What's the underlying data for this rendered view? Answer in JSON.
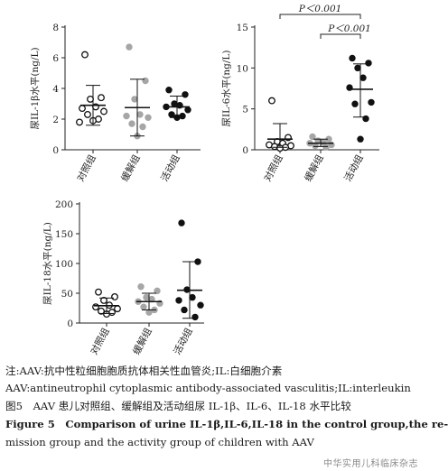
{
  "chart_data": [
    {
      "type": "scatter",
      "ylabel": "尿IL-1β水平(ng/L)",
      "ylim": [
        0,
        8
      ],
      "yticks": [
        0,
        2,
        4,
        6,
        8
      ],
      "categories": [
        "对照组",
        "缓解组",
        "活动组"
      ],
      "groups": [
        {
          "name": "对照组",
          "marker": "open",
          "color": "#111111",
          "values": [
            6.2,
            3.4,
            3.3,
            2.8,
            2.7,
            2.5,
            2.3,
            2.0,
            1.9,
            1.8
          ],
          "mean": 2.9,
          "sd_low": 1.6,
          "sd_high": 4.2
        },
        {
          "name": "缓解组",
          "marker": "filled",
          "color": "#a6a6a6",
          "values": [
            6.7,
            4.5,
            3.3,
            2.3,
            2.2,
            2.1,
            1.7,
            1.5,
            0.9
          ],
          "mean": 2.75,
          "sd_low": 0.9,
          "sd_high": 4.6
        },
        {
          "name": "活动组",
          "marker": "filled",
          "color": "#111111",
          "values": [
            3.9,
            3.6,
            3.0,
            2.9,
            2.8,
            2.6,
            2.3,
            2.2,
            2.1
          ],
          "mean": 2.8,
          "sd_low": 2.1,
          "sd_high": 3.5
        }
      ]
    },
    {
      "type": "scatter",
      "ylabel": "尿IL-6水平(ng/L)",
      "ylim": [
        0,
        15
      ],
      "yticks": [
        0,
        5,
        10,
        15
      ],
      "categories": [
        "对照组",
        "缓解组",
        "活动组"
      ],
      "annotations": [
        "P＜0.001",
        "P＜0.001"
      ],
      "groups": [
        {
          "name": "对照组",
          "marker": "open",
          "color": "#111111",
          "values": [
            6.0,
            1.5,
            1.0,
            0.8,
            0.6,
            0.5,
            0.4,
            0.3,
            0.2
          ],
          "mean": 1.3,
          "sd_low": 0.3,
          "sd_high": 3.2
        },
        {
          "name": "缓解组",
          "marker": "filled",
          "color": "#a6a6a6",
          "values": [
            1.6,
            1.3,
            1.1,
            0.9,
            0.8,
            0.6,
            0.5,
            0.3
          ],
          "mean": 0.8,
          "sd_low": 0.4,
          "sd_high": 1.3
        },
        {
          "name": "活动组",
          "marker": "filled",
          "color": "#111111",
          "values": [
            11.2,
            10.6,
            10.0,
            8.8,
            7.6,
            5.8,
            5.6,
            3.8,
            1.3
          ],
          "mean": 7.4,
          "sd_low": 4.0,
          "sd_high": 10.5
        }
      ]
    },
    {
      "type": "scatter",
      "ylabel": "尿IL-18水平(ng/L)",
      "ylim": [
        0,
        200
      ],
      "yticks": [
        0,
        50,
        100,
        150,
        200
      ],
      "categories": [
        "对照组",
        "缓解组",
        "活动组"
      ],
      "groups": [
        {
          "name": "对照组",
          "marker": "open",
          "color": "#111111",
          "values": [
            52,
            44,
            38,
            30,
            27,
            24,
            20,
            18,
            15
          ],
          "mean": 29,
          "sd_low": 16,
          "sd_high": 42
        },
        {
          "name": "缓解组",
          "marker": "filled",
          "color": "#a6a6a6",
          "values": [
            61,
            54,
            43,
            40,
            36,
            33,
            27,
            22,
            18
          ],
          "mean": 36,
          "sd_low": 22,
          "sd_high": 50
        },
        {
          "name": "活动组",
          "marker": "filled",
          "color": "#111111",
          "values": [
            168,
            103,
            56,
            43,
            38,
            30,
            22,
            10
          ],
          "mean": 55,
          "sd_low": 8,
          "sd_high": 103
        }
      ]
    }
  ],
  "caption": {
    "note_line1": "注:AAV:抗中性粒细胞胞质抗体相关性血管炎;IL:白细胞介素",
    "note_line2": "AAV:antineutrophil cytoplasmic antibody-associated vasculitis;IL:interleukin",
    "figure_cn": "图5　AAV 患儿对照组、缓解组及活动组尿 IL-1β、IL-6、IL-18 水平比较",
    "figure_en_line1": "Figure 5　Comparison of urine IL-1β,IL-6,IL-18 in the control group,the re-",
    "figure_en_line2": "mission group and the activity group of children with AAV"
  },
  "watermark": "中华实用儿科临床杂志"
}
